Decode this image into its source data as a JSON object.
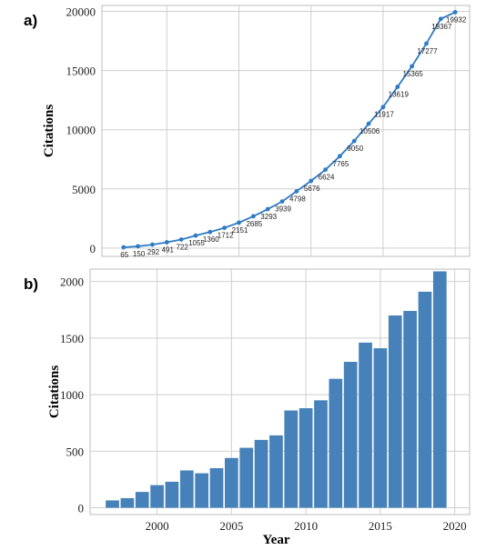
{
  "chart_data": [
    {
      "type": "line",
      "panel_label": "a)",
      "title": "",
      "xlabel": "",
      "ylabel": "Citations",
      "x": [
        1997,
        1998,
        1999,
        2000,
        2001,
        2002,
        2003,
        2004,
        2005,
        2006,
        2007,
        2008,
        2009,
        2010,
        2011,
        2012,
        2013,
        2014,
        2015,
        2016,
        2017,
        2018,
        2019,
        2020
      ],
      "series": [
        {
          "values": [
            65,
            150,
            292,
            491,
            722,
            1055,
            1360,
            1712,
            2151,
            2685,
            3293,
            3939,
            4798,
            5676,
            6624,
            7765,
            9050,
            10506,
            11917,
            13619,
            15365,
            17277,
            19367,
            19932
          ],
          "color": "#2e7bc4"
        }
      ],
      "data_labels": [
        "65",
        "150",
        "292",
        "491",
        "722",
        "1055",
        "1360",
        "1712",
        "2151",
        "2685",
        "3293",
        "3939",
        "4798",
        "5676",
        "6624",
        "7765",
        "9050",
        "10506",
        "11917",
        "13619",
        "15365",
        "17277",
        "19367",
        "19932"
      ],
      "xlim": [
        1995.5,
        2021
      ],
      "ylim": [
        -700,
        20500
      ],
      "yticks": [
        0,
        5000,
        10000,
        15000,
        20000
      ],
      "ytick_labels": [
        "0",
        "5000",
        "10000",
        "15000",
        "20000"
      ],
      "grid": true
    },
    {
      "type": "bar",
      "panel_label": "b)",
      "title": "",
      "xlabel": "Year",
      "ylabel": "Citations",
      "categories": [
        1997,
        1998,
        1999,
        2000,
        2001,
        2002,
        2003,
        2004,
        2005,
        2006,
        2007,
        2008,
        2009,
        2010,
        2011,
        2012,
        2013,
        2014,
        2015,
        2016,
        2017,
        2018,
        2019
      ],
      "values": [
        65,
        85,
        140,
        200,
        230,
        330,
        305,
        350,
        440,
        530,
        600,
        640,
        860,
        880,
        950,
        1140,
        1290,
        1460,
        1410,
        1700,
        1740,
        1910,
        2090
      ],
      "color": "#4682b9",
      "xlim": [
        1995.5,
        2021
      ],
      "ylim": [
        -60,
        2110
      ],
      "xticks": [
        2000,
        2005,
        2010,
        2015,
        2020
      ],
      "xtick_labels": [
        "2000",
        "2005",
        "2010",
        "2015",
        "2020"
      ],
      "yticks": [
        0,
        500,
        1000,
        1500,
        2000
      ],
      "ytick_labels": [
        "0",
        "500",
        "1000",
        "1500",
        "2000"
      ],
      "grid": true
    }
  ]
}
